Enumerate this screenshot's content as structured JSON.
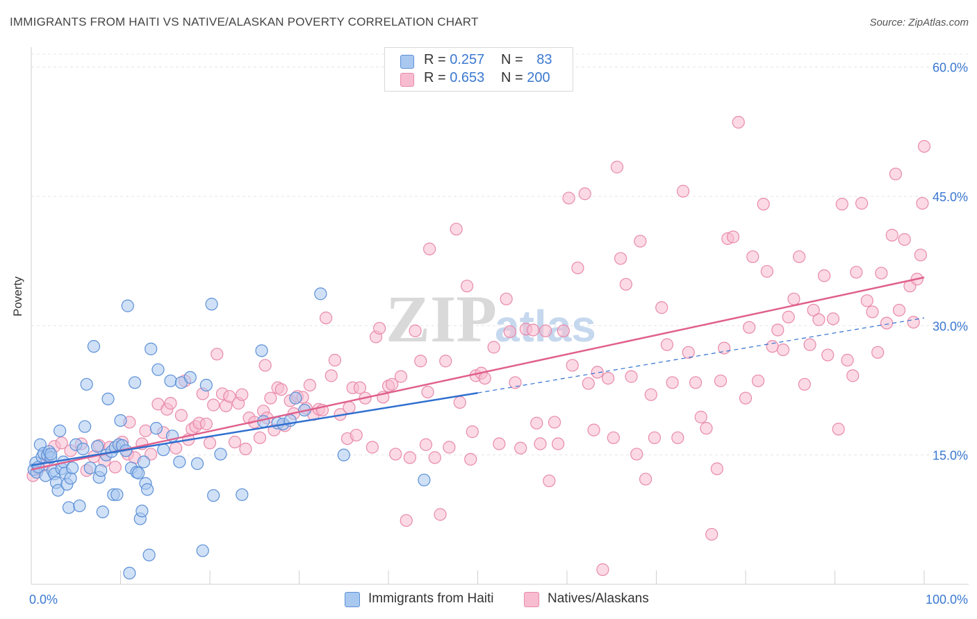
{
  "header": {
    "title": "IMMIGRANTS FROM HAITI VS NATIVE/ALASKAN POVERTY CORRELATION CHART",
    "source": "Source: ZipAtlas.com"
  },
  "colors": {
    "blue_fill": "#a9c8f0",
    "blue_stroke": "#5b8fd6",
    "blue_line": "#2f6fcf",
    "pink_fill": "#f7bcd0",
    "pink_stroke": "#e889aa",
    "pink_line": "#e0608c",
    "tick_label": "#3a78d0",
    "grid": "#e4e4e4"
  },
  "legend": {
    "rows": [
      {
        "r_label": "R =",
        "r_value": "0.257",
        "n_label": "N =",
        "n_value": "83",
        "color": "#a9c8f0"
      },
      {
        "r_label": "R =",
        "r_value": "0.653",
        "n_label": "N =",
        "n_value": "200",
        "color": "#f7bcd0"
      }
    ],
    "bottom": [
      {
        "label": "Immigrants from Haiti",
        "color": "#a9c8f0"
      },
      {
        "label": "Natives/Alaskans",
        "color": "#f7bcd0"
      }
    ]
  },
  "chart_data": {
    "type": "scatter",
    "title": "IMMIGRANTS FROM HAITI VS NATIVE/ALASKAN POVERTY CORRELATION CHART",
    "xlabel": "",
    "ylabel": "Poverty",
    "xlim": [
      0,
      100
    ],
    "ylim": [
      0,
      61.5
    ],
    "x_tick_labels": [
      "0.0%",
      "100.0%"
    ],
    "y_ticks": [
      15,
      30,
      45,
      60
    ],
    "y_tick_labels": [
      "15.0%",
      "30.0%",
      "45.0%",
      "60.0%"
    ],
    "grid": "horizontal dashed",
    "watermark": "ZIPatlas",
    "series": [
      {
        "name": "Immigrants from Haiti",
        "r": 0.257,
        "n": 83,
        "trend": {
          "x0": 0,
          "y0": 13.8,
          "x1": 50,
          "y1": 22.2,
          "dashed_to_x": 100,
          "dashed_to_y": 30.9
        },
        "points": [
          [
            0.3,
            13.3
          ],
          [
            0.5,
            14.1
          ],
          [
            0.6,
            13.0
          ],
          [
            0.8,
            13.6
          ],
          [
            1.0,
            16.2
          ],
          [
            1.2,
            14.8
          ],
          [
            1.4,
            15.2
          ],
          [
            1.6,
            12.6
          ],
          [
            1.8,
            15.0
          ],
          [
            2.0,
            15.4
          ],
          [
            2.2,
            14.7
          ],
          [
            2.4,
            13.2
          ],
          [
            2.6,
            12.8
          ],
          [
            2.8,
            11.8
          ],
          [
            3.0,
            10.9
          ],
          [
            3.2,
            17.8
          ],
          [
            3.4,
            13.4
          ],
          [
            3.6,
            14.2
          ],
          [
            3.8,
            12.9
          ],
          [
            4.0,
            11.6
          ],
          [
            4.2,
            8.9
          ],
          [
            4.4,
            12.3
          ],
          [
            4.6,
            13.5
          ],
          [
            5.0,
            16.2
          ],
          [
            5.4,
            9.1
          ],
          [
            5.8,
            15.7
          ],
          [
            6.0,
            18.3
          ],
          [
            6.2,
            23.2
          ],
          [
            6.6,
            13.5
          ],
          [
            7.0,
            27.6
          ],
          [
            7.4,
            16.0
          ],
          [
            7.6,
            12.4
          ],
          [
            7.8,
            13.2
          ],
          [
            8.0,
            8.4
          ],
          [
            8.4,
            15.0
          ],
          [
            8.6,
            21.5
          ],
          [
            9.0,
            15.4
          ],
          [
            9.2,
            10.4
          ],
          [
            9.4,
            15.9
          ],
          [
            9.6,
            10.4
          ],
          [
            9.8,
            16.2
          ],
          [
            10.0,
            19.0
          ],
          [
            10.2,
            16.1
          ],
          [
            10.6,
            15.5
          ],
          [
            10.8,
            32.3
          ],
          [
            11.0,
            1.3
          ],
          [
            11.2,
            13.5
          ],
          [
            11.6,
            23.4
          ],
          [
            11.8,
            13.0
          ],
          [
            12.0,
            12.9
          ],
          [
            12.2,
            7.6
          ],
          [
            12.4,
            8.5
          ],
          [
            12.6,
            14.2
          ],
          [
            12.8,
            11.7
          ],
          [
            13.0,
            11.0
          ],
          [
            13.2,
            3.4
          ],
          [
            13.4,
            27.3
          ],
          [
            14.0,
            18.1
          ],
          [
            14.2,
            24.9
          ],
          [
            14.8,
            15.6
          ],
          [
            15.6,
            23.6
          ],
          [
            15.8,
            17.2
          ],
          [
            16.6,
            14.2
          ],
          [
            16.8,
            23.4
          ],
          [
            17.8,
            24.0
          ],
          [
            18.6,
            14.0
          ],
          [
            19.2,
            3.9
          ],
          [
            19.6,
            23.1
          ],
          [
            20.2,
            32.5
          ],
          [
            20.4,
            10.3
          ],
          [
            21.2,
            15.1
          ],
          [
            23.6,
            10.4
          ],
          [
            25.8,
            27.1
          ],
          [
            26.0,
            18.9
          ],
          [
            27.6,
            18.7
          ],
          [
            28.2,
            18.6
          ],
          [
            29.0,
            19.0
          ],
          [
            29.6,
            21.6
          ],
          [
            30.6,
            20.2
          ],
          [
            32.4,
            33.7
          ],
          [
            35.0,
            15.0
          ],
          [
            44.0,
            12.1
          ],
          [
            2.2,
            15.1
          ]
        ]
      },
      {
        "name": "Natives/Alaskans",
        "r": 0.653,
        "n": 200,
        "trend": {
          "x0": 0,
          "y0": 13.3,
          "x1": 100,
          "y1": 35.6
        },
        "points": [
          [
            0.2,
            12.6
          ],
          [
            0.8,
            13.4
          ],
          [
            1.4,
            13.8
          ],
          [
            1.8,
            14.9
          ],
          [
            2.6,
            16.0
          ],
          [
            3.4,
            16.4
          ],
          [
            4.4,
            15.5
          ],
          [
            5.6,
            16.3
          ],
          [
            6.2,
            13.2
          ],
          [
            7.0,
            14.8
          ],
          [
            7.6,
            16.1
          ],
          [
            8.2,
            14.3
          ],
          [
            8.8,
            15.9
          ],
          [
            9.4,
            13.6
          ],
          [
            10.2,
            16.5
          ],
          [
            10.8,
            15.1
          ],
          [
            11.0,
            18.8
          ],
          [
            11.6,
            14.7
          ],
          [
            12.4,
            16.3
          ],
          [
            12.8,
            17.8
          ],
          [
            13.4,
            15.1
          ],
          [
            14.2,
            20.9
          ],
          [
            14.8,
            17.6
          ],
          [
            15.2,
            20.3
          ],
          [
            15.6,
            21.0
          ],
          [
            16.2,
            15.8
          ],
          [
            16.8,
            19.6
          ],
          [
            17.2,
            23.6
          ],
          [
            17.6,
            16.8
          ],
          [
            18.0,
            18.0
          ],
          [
            18.4,
            18.3
          ],
          [
            18.8,
            18.7
          ],
          [
            19.2,
            22.1
          ],
          [
            19.6,
            18.6
          ],
          [
            20.0,
            16.4
          ],
          [
            20.4,
            20.8
          ],
          [
            20.8,
            26.7
          ],
          [
            21.4,
            22.1
          ],
          [
            21.8,
            20.7
          ],
          [
            22.2,
            21.8
          ],
          [
            22.8,
            16.5
          ],
          [
            23.2,
            21.0
          ],
          [
            23.6,
            22.0
          ],
          [
            24.0,
            15.7
          ],
          [
            24.4,
            19.3
          ],
          [
            25.0,
            18.8
          ],
          [
            25.6,
            17.0
          ],
          [
            26.0,
            20.1
          ],
          [
            26.4,
            19.3
          ],
          [
            26.8,
            21.6
          ],
          [
            27.2,
            17.9
          ],
          [
            27.6,
            22.8
          ],
          [
            28.0,
            22.6
          ],
          [
            28.4,
            18.4
          ],
          [
            29.0,
            21.3
          ],
          [
            29.4,
            19.8
          ],
          [
            29.8,
            21.8
          ],
          [
            30.4,
            21.7
          ],
          [
            30.8,
            20.4
          ],
          [
            31.2,
            23.1
          ],
          [
            31.6,
            19.7
          ],
          [
            32.2,
            20.3
          ],
          [
            32.6,
            20.2
          ],
          [
            33.0,
            30.9
          ],
          [
            33.6,
            24.2
          ],
          [
            34.0,
            26.0
          ],
          [
            34.6,
            19.7
          ],
          [
            35.4,
            16.9
          ],
          [
            35.6,
            20.5
          ],
          [
            36.0,
            22.8
          ],
          [
            36.8,
            22.8
          ],
          [
            37.4,
            21.6
          ],
          [
            38.2,
            15.9
          ],
          [
            38.6,
            28.7
          ],
          [
            39.4,
            21.7
          ],
          [
            40.0,
            23.0
          ],
          [
            40.4,
            23.2
          ],
          [
            40.8,
            15.1
          ],
          [
            41.4,
            24.1
          ],
          [
            42.0,
            7.4
          ],
          [
            42.4,
            14.7
          ],
          [
            43.0,
            29.4
          ],
          [
            43.6,
            25.9
          ],
          [
            44.2,
            16.2
          ],
          [
            44.6,
            38.9
          ],
          [
            45.2,
            14.7
          ],
          [
            45.8,
            8.1
          ],
          [
            46.4,
            25.9
          ],
          [
            46.8,
            15.9
          ],
          [
            47.6,
            41.2
          ],
          [
            48.0,
            21.1
          ],
          [
            48.8,
            34.6
          ],
          [
            49.2,
            14.5
          ],
          [
            49.4,
            17.7
          ],
          [
            49.8,
            24.2
          ],
          [
            50.4,
            24.5
          ],
          [
            50.8,
            23.9
          ],
          [
            51.8,
            27.5
          ],
          [
            52.4,
            16.3
          ],
          [
            53.2,
            33.1
          ],
          [
            53.6,
            29.3
          ],
          [
            54.2,
            23.4
          ],
          [
            54.8,
            15.8
          ],
          [
            55.4,
            29.6
          ],
          [
            56.2,
            29.5
          ],
          [
            56.6,
            18.7
          ],
          [
            57.0,
            16.3
          ],
          [
            57.6,
            29.4
          ],
          [
            58.0,
            12.0
          ],
          [
            58.6,
            18.8
          ],
          [
            59.0,
            16.3
          ],
          [
            59.6,
            29.4
          ],
          [
            60.2,
            44.8
          ],
          [
            60.6,
            25.4
          ],
          [
            61.2,
            36.7
          ],
          [
            62.0,
            45.3
          ],
          [
            62.4,
            23.3
          ],
          [
            63.0,
            17.9
          ],
          [
            63.4,
            24.6
          ],
          [
            64.0,
            1.7
          ],
          [
            64.6,
            23.9
          ],
          [
            65.2,
            17.0
          ],
          [
            65.6,
            48.4
          ],
          [
            66.0,
            37.8
          ],
          [
            66.6,
            34.8
          ],
          [
            67.2,
            24.1
          ],
          [
            67.8,
            15.1
          ],
          [
            68.2,
            39.8
          ],
          [
            68.8,
            12.2
          ],
          [
            69.4,
            22.0
          ],
          [
            69.8,
            17.0
          ],
          [
            70.6,
            32.1
          ],
          [
            71.2,
            27.8
          ],
          [
            71.8,
            23.4
          ],
          [
            72.4,
            17.0
          ],
          [
            73.0,
            45.6
          ],
          [
            73.6,
            26.9
          ],
          [
            74.4,
            23.4
          ],
          [
            75.0,
            19.4
          ],
          [
            75.6,
            18.1
          ],
          [
            76.2,
            5.8
          ],
          [
            76.8,
            13.4
          ],
          [
            77.2,
            23.6
          ],
          [
            77.6,
            27.4
          ],
          [
            78.0,
            40.1
          ],
          [
            78.6,
            40.3
          ],
          [
            79.2,
            53.6
          ],
          [
            80.0,
            21.6
          ],
          [
            80.4,
            29.8
          ],
          [
            80.8,
            38.0
          ],
          [
            81.4,
            23.6
          ],
          [
            82.0,
            44.1
          ],
          [
            82.4,
            36.3
          ],
          [
            83.0,
            27.6
          ],
          [
            83.6,
            29.5
          ],
          [
            84.2,
            27.2
          ],
          [
            84.8,
            31.0
          ],
          [
            85.4,
            33.1
          ],
          [
            86.0,
            38.0
          ],
          [
            86.6,
            23.2
          ],
          [
            87.2,
            27.8
          ],
          [
            87.6,
            31.8
          ],
          [
            88.2,
            30.7
          ],
          [
            88.8,
            35.8
          ],
          [
            89.2,
            26.6
          ],
          [
            89.8,
            30.8
          ],
          [
            90.4,
            18.0
          ],
          [
            90.8,
            44.1
          ],
          [
            91.4,
            26.0
          ],
          [
            92.0,
            24.2
          ],
          [
            92.4,
            36.2
          ],
          [
            93.0,
            44.2
          ],
          [
            93.6,
            32.9
          ],
          [
            94.2,
            31.6
          ],
          [
            94.8,
            26.9
          ],
          [
            95.2,
            36.1
          ],
          [
            95.8,
            30.3
          ],
          [
            96.4,
            40.5
          ],
          [
            96.8,
            47.6
          ],
          [
            97.2,
            31.8
          ],
          [
            97.8,
            40.0
          ],
          [
            98.4,
            34.6
          ],
          [
            98.8,
            30.4
          ],
          [
            99.2,
            35.4
          ],
          [
            99.6,
            38.2
          ],
          [
            99.8,
            44.2
          ],
          [
            100.0,
            50.8
          ],
          [
            44.4,
            22.3
          ],
          [
            39.0,
            29.7
          ],
          [
            36.4,
            17.3
          ],
          [
            26.2,
            25.4
          ]
        ]
      }
    ]
  }
}
